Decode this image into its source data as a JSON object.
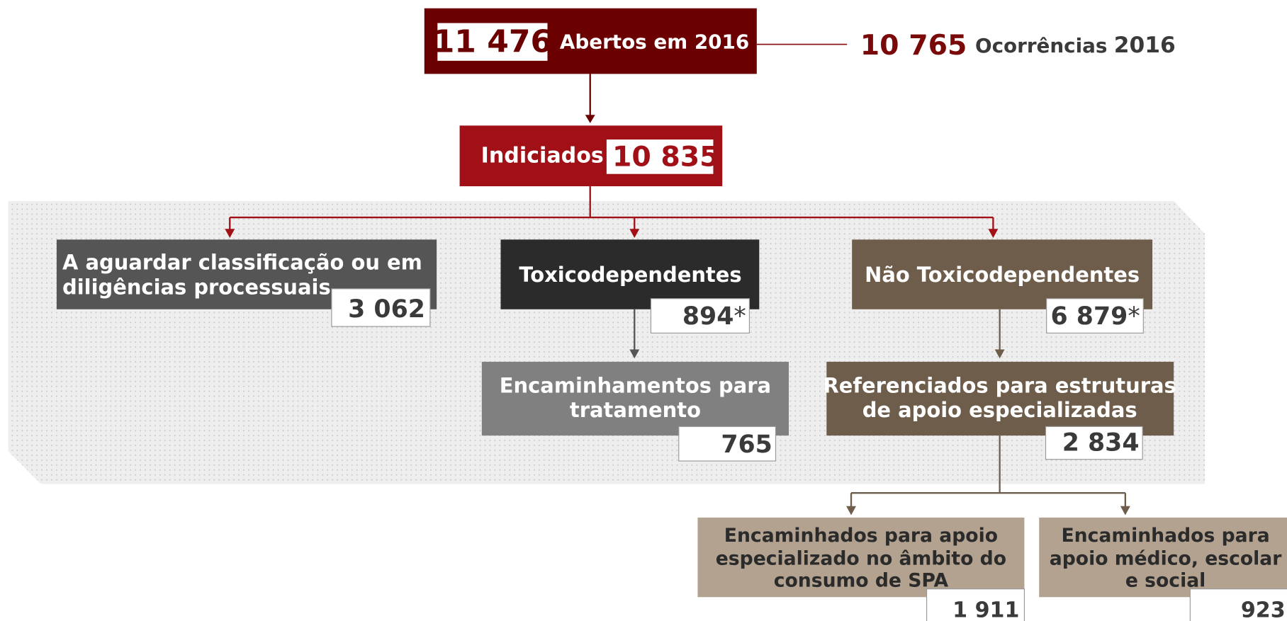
{
  "top": {
    "value": "11 476",
    "label": "Abertos em 2016"
  },
  "occurrences": {
    "value": "10 765",
    "label": "Ocorrências",
    "year": "2016"
  },
  "indicted": {
    "label": "Indiciados",
    "value": "10 835"
  },
  "nodes": [
    {
      "lines": [
        "A aguardar classificação ou em",
        "diligências processuais"
      ],
      "value": "3 062"
    },
    {
      "lines": [
        "Toxicodependentes"
      ],
      "value": "894",
      "note_mark": "*"
    },
    {
      "lines": [
        "Não Toxicodependentes"
      ],
      "value": "6 879",
      "note_mark": "*"
    },
    {
      "lines": [
        "Encaminhamentos para",
        "tratamento"
      ],
      "value": "765"
    },
    {
      "lines": [
        "Referenciados para estruturas",
        "de apoio especializadas"
      ],
      "value": "2 834"
    },
    {
      "lines": [
        "Encaminhados para apoio",
        "especializado no âmbito do",
        "consumo de SPA"
      ],
      "value": "1 911"
    },
    {
      "lines": [
        "Encaminhados para",
        "apoio médico, escolar",
        "e social"
      ],
      "value": "923"
    }
  ]
}
